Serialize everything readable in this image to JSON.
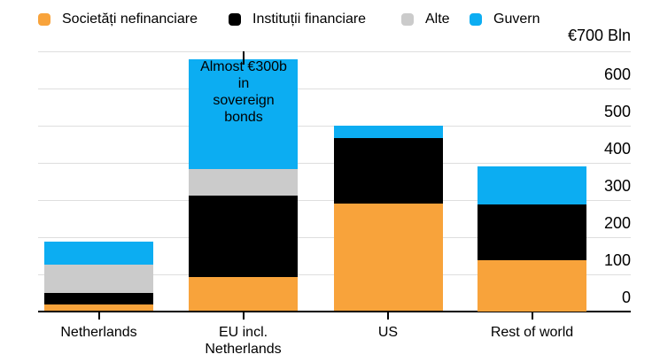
{
  "legend": {
    "items": [
      {
        "label": "Societăți nefinanciare",
        "color": "#F8A33B"
      },
      {
        "label": "Instituții financiare",
        "color": "#000000"
      },
      {
        "label": "Alte",
        "color": "#CBCBCB"
      },
      {
        "label": "Guvern",
        "color": "#0CADF2"
      }
    ]
  },
  "y_axis": {
    "unit_label": "€700 Bln",
    "ticks": [
      600,
      500,
      400,
      300,
      200,
      100,
      0
    ]
  },
  "chart_data": {
    "type": "bar",
    "stacked": true,
    "categories": [
      "Netherlands",
      "EU incl.\nNetherlands",
      "US",
      "Rest of world"
    ],
    "series": [
      {
        "name": "Societăți nefinanciare",
        "color": "#F8A33B",
        "values": [
          18,
          92,
          290,
          137
        ]
      },
      {
        "name": "Instituții financiare",
        "color": "#000000",
        "values": [
          30,
          219,
          175,
          150
        ]
      },
      {
        "name": "Alte",
        "color": "#CBCBCB",
        "values": [
          78,
          71,
          0,
          0
        ]
      },
      {
        "name": "Guvern",
        "color": "#0CADF2",
        "values": [
          60,
          295,
          35,
          102
        ]
      }
    ],
    "totals_approx": [
      186,
      677,
      500,
      389
    ],
    "ylim": [
      0,
      700
    ],
    "grid": true,
    "legend_position": "top",
    "annotation": {
      "text": "Almost €300b\nin\nsovereign\nbonds",
      "target_category": "EU incl.\nNetherlands"
    }
  }
}
